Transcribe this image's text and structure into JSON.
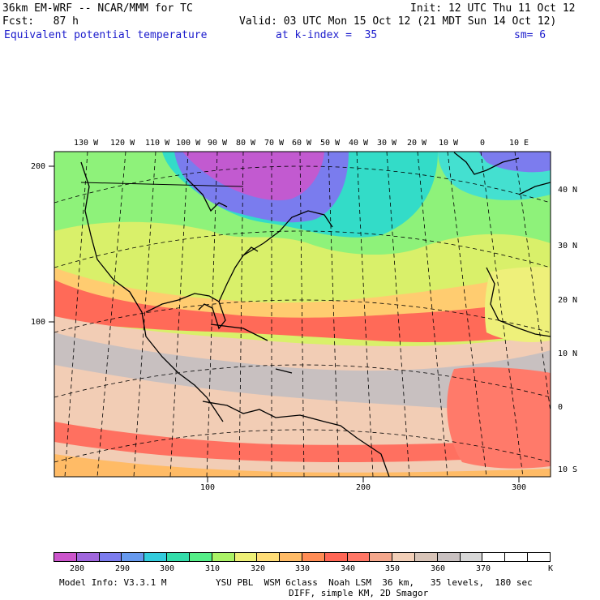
{
  "header": {
    "model_title": "36km EM-WRF -- NCAR/MMM for TC",
    "init": "Init: 12 UTC Thu 11 Oct 12",
    "fcst": "Fcst:   87 h",
    "valid": "Valid: 03 UTC Mon 15 Oct 12 (21 MDT Sun 14 Oct 12)",
    "field": "Equivalent potential temperature",
    "level": "at k-index =  35",
    "smooth": "sm= 6"
  },
  "map": {
    "top_lon_labels": [
      "130 W",
      "120 W",
      "110 W",
      "100 W",
      "90 W",
      "80 W",
      "70 W",
      "60 W",
      "50 W",
      "40 W",
      "30 W",
      "20 W",
      "10 W",
      "0",
      "10 E"
    ],
    "right_lat_labels": [
      "40 N",
      "30 N",
      "20 N",
      "10 N",
      "0",
      "10 S"
    ],
    "left_grid_labels": [
      "200",
      "100"
    ],
    "bottom_grid_labels": [
      "100",
      "200",
      "300"
    ]
  },
  "colorbar": {
    "colors": [
      "#cc55cc",
      "#a066dd",
      "#7c7cee",
      "#6699ee",
      "#33ccdd",
      "#33ddaa",
      "#55ee88",
      "#aaf266",
      "#eef077",
      "#ffdd77",
      "#ffbb66",
      "#ff8c55",
      "#ff6655",
      "#ff7766",
      "#f4a78c",
      "#f2cfb8",
      "#d8c4b8",
      "#c9c1c1",
      "#d8d8d8",
      "#ffffff",
      "#ffffff",
      "#ffffff"
    ],
    "labels": [
      "280",
      "290",
      "300",
      "310",
      "320",
      "330",
      "340",
      "350",
      "360",
      "370"
    ],
    "unit": "K"
  },
  "footer": {
    "model_info": "Model Info: V3.3.1 M",
    "physics": "YSU PBL  WSM 6class  Noah LSM  36 km,   35 levels,  180 sec",
    "diff": "DIFF, simple KM, 2D Smagor"
  }
}
